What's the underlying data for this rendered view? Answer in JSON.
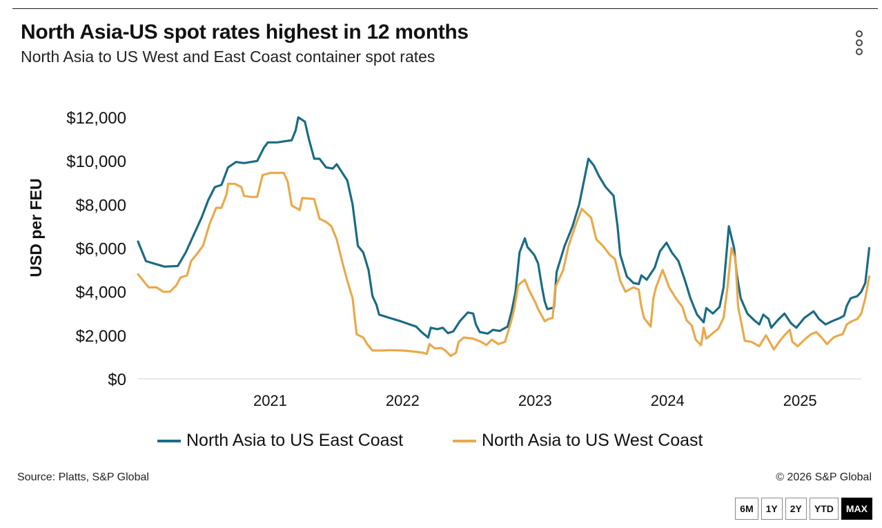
{
  "header": {
    "title": "North Asia-US spot rates highest in 12 months",
    "subtitle": "North Asia to US West and East Coast container spot rates"
  },
  "footer": {
    "source": "Source: Platts, S&P Global",
    "copyright": "© 2026 S&P Global"
  },
  "range_buttons": [
    {
      "label": "6M",
      "active": false
    },
    {
      "label": "1Y",
      "active": false
    },
    {
      "label": "2Y",
      "active": false
    },
    {
      "label": "YTD",
      "active": false
    },
    {
      "label": "MAX",
      "active": true
    }
  ],
  "menu_icon": "kebab-menu-icon",
  "chart_data": {
    "type": "line",
    "title": "North Asia-US spot rates highest in 12 months",
    "subtitle": "North Asia to US West and East Coast container spot rates",
    "ylabel": "USD per FEU",
    "xlabel": "",
    "x_range": [
      2020.5,
      2025.96
    ],
    "ylim": [
      0,
      12000
    ],
    "y_ticks": [
      0,
      2000,
      4000,
      6000,
      8000,
      10000,
      12000
    ],
    "y_tick_labels": [
      "$0",
      "$2,000",
      "$4,000",
      "$6,000",
      "$8,000",
      "$10,000",
      "$12,000"
    ],
    "x_ticks": [
      2021,
      2022,
      2023,
      2024,
      2025
    ],
    "x_tick_labels": [
      "2021",
      "2022",
      "2023",
      "2024",
      "2025"
    ],
    "grid": false,
    "legend_position": "bottom",
    "series": [
      {
        "name": "North Asia to US East Coast",
        "color": "#1a6b85",
        "points": [
          [
            2020.5,
            6300
          ],
          [
            2020.56,
            5400
          ],
          [
            2020.7,
            5150
          ],
          [
            2020.8,
            5180
          ],
          [
            2020.86,
            5800
          ],
          [
            2020.92,
            6600
          ],
          [
            2020.98,
            7400
          ],
          [
            2021.03,
            8200
          ],
          [
            2021.08,
            8800
          ],
          [
            2021.13,
            8900
          ],
          [
            2021.18,
            9700
          ],
          [
            2021.24,
            9950
          ],
          [
            2021.3,
            9900
          ],
          [
            2021.4,
            10000
          ],
          [
            2021.45,
            10600
          ],
          [
            2021.48,
            10850
          ],
          [
            2021.55,
            10850
          ],
          [
            2021.66,
            10950
          ],
          [
            2021.69,
            11400
          ],
          [
            2021.71,
            12000
          ],
          [
            2021.76,
            11800
          ],
          [
            2021.79,
            11000
          ],
          [
            2021.83,
            10100
          ],
          [
            2021.87,
            10100
          ],
          [
            2021.92,
            9700
          ],
          [
            2021.97,
            9650
          ],
          [
            2022.0,
            9850
          ],
          [
            2022.08,
            9100
          ],
          [
            2022.12,
            8000
          ],
          [
            2022.16,
            6100
          ],
          [
            2022.2,
            5800
          ],
          [
            2022.24,
            5000
          ],
          [
            2022.27,
            3800
          ],
          [
            2022.3,
            3400
          ],
          [
            2022.32,
            2950
          ],
          [
            2022.4,
            2800
          ],
          [
            2022.48,
            2650
          ],
          [
            2022.55,
            2500
          ],
          [
            2022.6,
            2400
          ],
          [
            2022.64,
            2150
          ],
          [
            2022.69,
            1900
          ],
          [
            2022.71,
            2350
          ],
          [
            2022.76,
            2280
          ],
          [
            2022.8,
            2350
          ],
          [
            2022.84,
            2100
          ],
          [
            2022.88,
            2180
          ],
          [
            2022.93,
            2650
          ],
          [
            2022.99,
            3050
          ],
          [
            2023.03,
            3000
          ],
          [
            2023.05,
            2500
          ],
          [
            2023.08,
            2150
          ],
          [
            2023.14,
            2080
          ],
          [
            2023.18,
            2250
          ],
          [
            2023.23,
            2200
          ],
          [
            2023.29,
            2400
          ],
          [
            2023.32,
            3100
          ],
          [
            2023.35,
            4000
          ],
          [
            2023.38,
            5800
          ],
          [
            2023.42,
            6450
          ],
          [
            2023.44,
            6050
          ],
          [
            2023.49,
            5700
          ],
          [
            2023.52,
            5300
          ],
          [
            2023.55,
            4200
          ],
          [
            2023.57,
            3550
          ],
          [
            2023.59,
            3200
          ],
          [
            2023.64,
            3280
          ],
          [
            2023.66,
            4900
          ],
          [
            2023.69,
            5500
          ],
          [
            2023.72,
            6100
          ],
          [
            2023.78,
            7000
          ],
          [
            2023.83,
            8000
          ],
          [
            2023.88,
            9500
          ],
          [
            2023.9,
            10100
          ],
          [
            2023.94,
            9800
          ],
          [
            2023.98,
            9300
          ],
          [
            2024.03,
            8800
          ],
          [
            2024.09,
            8400
          ],
          [
            2024.12,
            7000
          ],
          [
            2024.14,
            5700
          ],
          [
            2024.19,
            4700
          ],
          [
            2024.24,
            4400
          ],
          [
            2024.28,
            4350
          ],
          [
            2024.3,
            4750
          ],
          [
            2024.34,
            4550
          ],
          [
            2024.4,
            5100
          ],
          [
            2024.44,
            5850
          ],
          [
            2024.49,
            6250
          ],
          [
            2024.53,
            5800
          ],
          [
            2024.58,
            5400
          ],
          [
            2024.63,
            4500
          ],
          [
            2024.67,
            3700
          ],
          [
            2024.72,
            2950
          ],
          [
            2024.77,
            2600
          ],
          [
            2024.79,
            3250
          ],
          [
            2024.84,
            3000
          ],
          [
            2024.89,
            3300
          ],
          [
            2024.92,
            4200
          ],
          [
            2024.96,
            7000
          ],
          [
            2025.0,
            6000
          ],
          [
            2025.02,
            4800
          ],
          [
            2025.05,
            3700
          ],
          [
            2025.1,
            3000
          ],
          [
            2025.15,
            2700
          ],
          [
            2025.19,
            2500
          ],
          [
            2025.22,
            2950
          ],
          [
            2025.26,
            2750
          ],
          [
            2025.28,
            2350
          ],
          [
            2025.33,
            2700
          ],
          [
            2025.38,
            3000
          ],
          [
            2025.43,
            2550
          ],
          [
            2025.47,
            2350
          ],
          [
            2025.53,
            2800
          ],
          [
            2025.6,
            3100
          ],
          [
            2025.64,
            2750
          ],
          [
            2025.69,
            2500
          ],
          [
            2025.74,
            2650
          ],
          [
            2025.8,
            2800
          ],
          [
            2025.83,
            2900
          ],
          [
            2025.85,
            3350
          ],
          [
            2025.88,
            3700
          ],
          [
            2025.93,
            3800
          ],
          [
            2025.96,
            4000
          ],
          [
            2025.99,
            4400
          ],
          [
            2026.02,
            6000
          ]
        ]
      },
      {
        "name": "North Asia to US West Coast",
        "color": "#e9a94b",
        "points": [
          [
            2020.5,
            4800
          ],
          [
            2020.54,
            4500
          ],
          [
            2020.58,
            4200
          ],
          [
            2020.64,
            4200
          ],
          [
            2020.69,
            4000
          ],
          [
            2020.74,
            4000
          ],
          [
            2020.79,
            4300
          ],
          [
            2020.82,
            4650
          ],
          [
            2020.87,
            4750
          ],
          [
            2020.9,
            5400
          ],
          [
            2020.94,
            5700
          ],
          [
            2020.99,
            6100
          ],
          [
            2021.04,
            7100
          ],
          [
            2021.09,
            7850
          ],
          [
            2021.13,
            7850
          ],
          [
            2021.17,
            8500
          ],
          [
            2021.18,
            8950
          ],
          [
            2021.23,
            8950
          ],
          [
            2021.28,
            8800
          ],
          [
            2021.3,
            8400
          ],
          [
            2021.35,
            8350
          ],
          [
            2021.4,
            8350
          ],
          [
            2021.44,
            9350
          ],
          [
            2021.5,
            9450
          ],
          [
            2021.6,
            9450
          ],
          [
            2021.63,
            9050
          ],
          [
            2021.66,
            7950
          ],
          [
            2021.72,
            7750
          ],
          [
            2021.74,
            8300
          ],
          [
            2021.83,
            8250
          ],
          [
            2021.87,
            7350
          ],
          [
            2021.92,
            7200
          ],
          [
            2021.96,
            7000
          ],
          [
            2022.0,
            6400
          ],
          [
            2022.04,
            5400
          ],
          [
            2022.08,
            4500
          ],
          [
            2022.12,
            3700
          ],
          [
            2022.15,
            2050
          ],
          [
            2022.2,
            1900
          ],
          [
            2022.23,
            1600
          ],
          [
            2022.27,
            1300
          ],
          [
            2022.34,
            1300
          ],
          [
            2022.4,
            1320
          ],
          [
            2022.5,
            1300
          ],
          [
            2022.59,
            1250
          ],
          [
            2022.65,
            1200
          ],
          [
            2022.68,
            1150
          ],
          [
            2022.7,
            1600
          ],
          [
            2022.74,
            1400
          ],
          [
            2022.79,
            1420
          ],
          [
            2022.82,
            1300
          ],
          [
            2022.86,
            1050
          ],
          [
            2022.9,
            1200
          ],
          [
            2022.92,
            1700
          ],
          [
            2022.96,
            1900
          ],
          [
            2023.03,
            1850
          ],
          [
            2023.09,
            1700
          ],
          [
            2023.13,
            1550
          ],
          [
            2023.17,
            1800
          ],
          [
            2023.22,
            1600
          ],
          [
            2023.27,
            1700
          ],
          [
            2023.31,
            2500
          ],
          [
            2023.34,
            3200
          ],
          [
            2023.37,
            4300
          ],
          [
            2023.42,
            4550
          ],
          [
            2023.45,
            4100
          ],
          [
            2023.5,
            3500
          ],
          [
            2023.52,
            3200
          ],
          [
            2023.57,
            2650
          ],
          [
            2023.6,
            2750
          ],
          [
            2023.63,
            2800
          ],
          [
            2023.65,
            4200
          ],
          [
            2023.71,
            5000
          ],
          [
            2023.75,
            6100
          ],
          [
            2023.8,
            7000
          ],
          [
            2023.85,
            7800
          ],
          [
            2023.92,
            7400
          ],
          [
            2023.96,
            6400
          ],
          [
            2024.01,
            6100
          ],
          [
            2024.06,
            5700
          ],
          [
            2024.1,
            5500
          ],
          [
            2024.14,
            4500
          ],
          [
            2024.18,
            4000
          ],
          [
            2024.21,
            4100
          ],
          [
            2024.24,
            4200
          ],
          [
            2024.28,
            4100
          ],
          [
            2024.3,
            3300
          ],
          [
            2024.32,
            2800
          ],
          [
            2024.37,
            2400
          ],
          [
            2024.39,
            3700
          ],
          [
            2024.41,
            4200
          ],
          [
            2024.46,
            5000
          ],
          [
            2024.51,
            4200
          ],
          [
            2024.56,
            3700
          ],
          [
            2024.61,
            3300
          ],
          [
            2024.64,
            2700
          ],
          [
            2024.68,
            2450
          ],
          [
            2024.71,
            1800
          ],
          [
            2024.75,
            1550
          ],
          [
            2024.77,
            2350
          ],
          [
            2024.79,
            1850
          ],
          [
            2024.84,
            2100
          ],
          [
            2024.88,
            2300
          ],
          [
            2024.92,
            2800
          ],
          [
            2024.95,
            4200
          ],
          [
            2024.98,
            6000
          ],
          [
            2025.01,
            5500
          ],
          [
            2025.03,
            3300
          ],
          [
            2025.06,
            2400
          ],
          [
            2025.08,
            1750
          ],
          [
            2025.13,
            1700
          ],
          [
            2025.19,
            1500
          ],
          [
            2025.24,
            2000
          ],
          [
            2025.26,
            1800
          ],
          [
            2025.3,
            1350
          ],
          [
            2025.34,
            1700
          ],
          [
            2025.38,
            2000
          ],
          [
            2025.42,
            2250
          ],
          [
            2025.44,
            1700
          ],
          [
            2025.48,
            1500
          ],
          [
            2025.54,
            1850
          ],
          [
            2025.58,
            2050
          ],
          [
            2025.62,
            2150
          ],
          [
            2025.66,
            1900
          ],
          [
            2025.7,
            1600
          ],
          [
            2025.75,
            1900
          ],
          [
            2025.79,
            2000
          ],
          [
            2025.82,
            2050
          ],
          [
            2025.85,
            2500
          ],
          [
            2025.89,
            2650
          ],
          [
            2025.93,
            2750
          ],
          [
            2025.96,
            3000
          ],
          [
            2025.99,
            3700
          ],
          [
            2026.02,
            4700
          ]
        ]
      }
    ]
  }
}
